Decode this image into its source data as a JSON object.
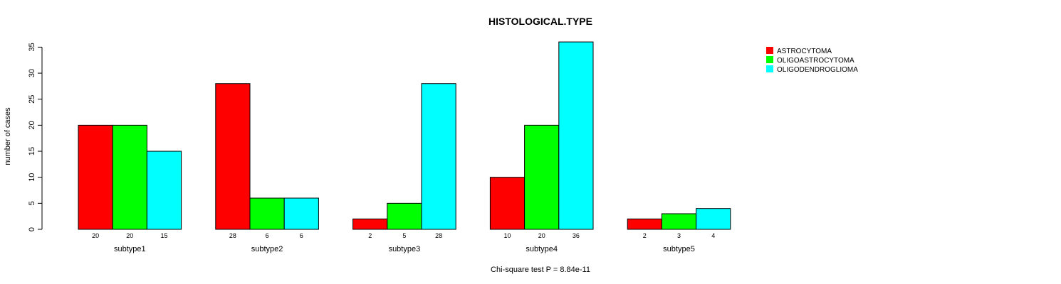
{
  "chart_data": {
    "type": "bar",
    "title": "HISTOLOGICAL.TYPE",
    "xlabel": "",
    "ylabel": "number of cases",
    "footnote": "Chi-square test P = 8.84e-11",
    "ylim": [
      0,
      35
    ],
    "yticks": [
      0,
      5,
      10,
      15,
      20,
      25,
      30,
      35
    ],
    "grid": false,
    "legend_position": "top-right",
    "categories": [
      "subtype1",
      "subtype2",
      "subtype3",
      "subtype4",
      "subtype5"
    ],
    "series": [
      {
        "name": "ASTROCYTOMA",
        "color": "#ff0000",
        "values": [
          20,
          28,
          2,
          10,
          2
        ]
      },
      {
        "name": "OLIGOASTROCYTOMA",
        "color": "#00ff00",
        "values": [
          20,
          6,
          5,
          20,
          3
        ]
      },
      {
        "name": "OLIGODENDROGLIOMA",
        "color": "#00ffff",
        "values": [
          15,
          6,
          28,
          36,
          4
        ]
      }
    ]
  }
}
